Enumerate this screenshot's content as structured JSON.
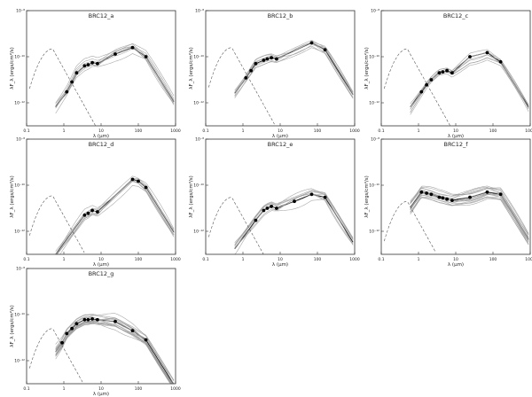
{
  "chart_data": [
    {
      "type": "line",
      "title": "BRC12_a",
      "xlabel": "λ (μm)",
      "ylabel": "λF_λ (ergs/cm²/s)",
      "xscale": "log",
      "yscale": "log",
      "xlim": [
        0.1,
        1000
      ],
      "ylim": [
        1e-13,
        1e-08
      ],
      "xticks": [
        "0.1",
        "1",
        "10",
        "100",
        "1000"
      ],
      "yticks": [
        "10⁻¹²",
        "10⁻¹⁰",
        "10⁻⁸"
      ],
      "ytick_values": [
        1e-12,
        1e-10,
        1e-08
      ],
      "points": [
        [
          1.2,
          3e-12
        ],
        [
          1.65,
          8e-12
        ],
        [
          2.2,
          2e-11
        ],
        [
          3.6,
          4e-11
        ],
        [
          4.5,
          4.5e-11
        ],
        [
          5.8,
          5.5e-11
        ],
        [
          8.0,
          5e-11
        ],
        [
          24,
          1.3e-10
        ],
        [
          70,
          2.5e-10
        ],
        [
          160,
          1e-10
        ]
      ],
      "stellar_peak": [
        0.5,
        2.2e-10
      ]
    },
    {
      "type": "line",
      "title": "BRC12_b",
      "xlabel": "λ (μm)",
      "ylabel": "λF_λ (ergs/cm²/s)",
      "xscale": "log",
      "yscale": "log",
      "xlim": [
        0.1,
        1000
      ],
      "ylim": [
        1e-13,
        1e-08
      ],
      "xticks": [
        "0.1",
        "1",
        "10",
        "100",
        "1000"
      ],
      "yticks": [
        "10⁻¹²",
        "10⁻¹⁰",
        "10⁻⁸"
      ],
      "ytick_values": [
        1e-12,
        1e-10,
        1e-08
      ],
      "points": [
        [
          1.2,
          1.2e-11
        ],
        [
          1.65,
          2.5e-11
        ],
        [
          2.2,
          5e-11
        ],
        [
          3.6,
          7e-11
        ],
        [
          4.5,
          8e-11
        ],
        [
          5.8,
          9e-11
        ],
        [
          8.0,
          8e-11
        ],
        [
          70,
          4e-10
        ],
        [
          160,
          2e-10
        ]
      ],
      "stellar_peak": [
        0.5,
        2.5e-10
      ]
    },
    {
      "type": "line",
      "title": "BRC12_c",
      "xlabel": "λ (μm)",
      "ylabel": "λF_λ (ergs/cm²/s)",
      "xscale": "log",
      "yscale": "log",
      "xlim": [
        0.1,
        1000
      ],
      "ylim": [
        1e-13,
        1e-08
      ],
      "xticks": [
        "0.1",
        "1",
        "10",
        "100",
        "1000"
      ],
      "yticks": [
        "10⁻¹²",
        "10⁻¹⁰",
        "10⁻⁸"
      ],
      "ytick_values": [
        1e-12,
        1e-10,
        1e-08
      ],
      "points": [
        [
          1.2,
          3e-12
        ],
        [
          1.65,
          6e-12
        ],
        [
          2.2,
          1e-11
        ],
        [
          3.6,
          2e-11
        ],
        [
          4.5,
          2.2e-11
        ],
        [
          5.8,
          2.5e-11
        ],
        [
          8.0,
          2e-11
        ],
        [
          24,
          1e-10
        ],
        [
          70,
          1.5e-10
        ],
        [
          160,
          6e-11
        ]
      ],
      "stellar_peak": [
        0.5,
        2.2e-10
      ]
    },
    {
      "type": "line",
      "title": "BRC12_d",
      "xlabel": "λ (μm)",
      "ylabel": "λF_λ (ergs/cm²/s)",
      "xscale": "log",
      "yscale": "log",
      "xlim": [
        0.1,
        1000
      ],
      "ylim": [
        1e-13,
        1e-08
      ],
      "xticks": [
        "0.1",
        "1",
        "10",
        "100",
        "1000"
      ],
      "yticks": [
        "10⁻¹²",
        "10⁻¹⁰",
        "10⁻⁸"
      ],
      "ytick_values": [
        1e-12,
        1e-10,
        1e-08
      ],
      "points": [
        [
          3.6,
          5e-12
        ],
        [
          4.5,
          6e-12
        ],
        [
          5.8,
          8e-12
        ],
        [
          8.0,
          7e-12
        ],
        [
          70,
          1.8e-10
        ],
        [
          100,
          1.5e-10
        ],
        [
          160,
          8e-11
        ]
      ],
      "stellar_peak": [
        0.5,
        3.5e-11
      ]
    },
    {
      "type": "line",
      "title": "BRC12_e",
      "xlabel": "λ (μm)",
      "ylabel": "λF_λ (ergs/cm²/s)",
      "xscale": "log",
      "yscale": "log",
      "xlim": [
        0.1,
        1000
      ],
      "ylim": [
        1e-13,
        1e-08
      ],
      "xticks": [
        "0.1",
        "1",
        "10",
        "100",
        "1000"
      ],
      "yticks": [
        "10⁻¹²",
        "10⁻¹⁰",
        "10⁻⁸"
      ],
      "ytick_values": [
        1e-12,
        1e-10,
        1e-08
      ],
      "points": [
        [
          2.2,
          3e-12
        ],
        [
          3.6,
          8e-12
        ],
        [
          4.5,
          1e-11
        ],
        [
          5.8,
          1.2e-11
        ],
        [
          8.0,
          1e-11
        ],
        [
          24,
          2e-11
        ],
        [
          70,
          4e-11
        ],
        [
          160,
          3e-11
        ]
      ],
      "stellar_peak": [
        0.5,
        3e-11
      ]
    },
    {
      "type": "line",
      "title": "BRC12_f",
      "xlabel": "λ (μm)",
      "ylabel": "λF_λ (ergs/cm²/s)",
      "xscale": "log",
      "yscale": "log",
      "xlim": [
        0.1,
        1000
      ],
      "ylim": [
        1e-13,
        1e-08
      ],
      "xticks": [
        "0.1",
        "1",
        "10",
        "100",
        "1000"
      ],
      "yticks": [
        "10⁻¹²",
        "10⁻¹⁰",
        "10⁻⁸"
      ],
      "ytick_values": [
        1e-12,
        1e-10,
        1e-08
      ],
      "points": [
        [
          1.2,
          5e-11
        ],
        [
          1.65,
          4.5e-11
        ],
        [
          2.2,
          4e-11
        ],
        [
          3.6,
          3e-11
        ],
        [
          4.5,
          2.8e-11
        ],
        [
          5.8,
          2.5e-11
        ],
        [
          8.0,
          2.2e-11
        ],
        [
          24,
          3e-11
        ],
        [
          70,
          5e-11
        ],
        [
          160,
          4e-11
        ]
      ],
      "stellar_peak": [
        0.5,
        2e-11
      ]
    },
    {
      "type": "line",
      "title": "BRC12_g",
      "xlabel": "λ (μm)",
      "ylabel": "λF_λ (ergs/cm²/s)",
      "xscale": "log",
      "yscale": "log",
      "xlim": [
        0.1,
        1000
      ],
      "ylim": [
        1e-13,
        1e-08
      ],
      "xticks": [
        "0.1",
        "1",
        "10",
        "100",
        "1000"
      ],
      "yticks": [
        "10⁻¹²",
        "10⁻¹⁰",
        "10⁻⁸"
      ],
      "ytick_values": [
        1e-12,
        1e-10,
        1e-08
      ],
      "points": [
        [
          0.9,
          6e-12
        ],
        [
          1.2,
          1.5e-11
        ],
        [
          1.65,
          2.5e-11
        ],
        [
          2.2,
          4e-11
        ],
        [
          3.6,
          6e-11
        ],
        [
          4.5,
          6e-11
        ],
        [
          5.8,
          6.5e-11
        ],
        [
          8.0,
          6e-11
        ],
        [
          24,
          5e-11
        ],
        [
          70,
          2e-11
        ],
        [
          160,
          8e-12
        ]
      ],
      "stellar_peak": [
        0.5,
        2.5e-11
      ]
    }
  ]
}
